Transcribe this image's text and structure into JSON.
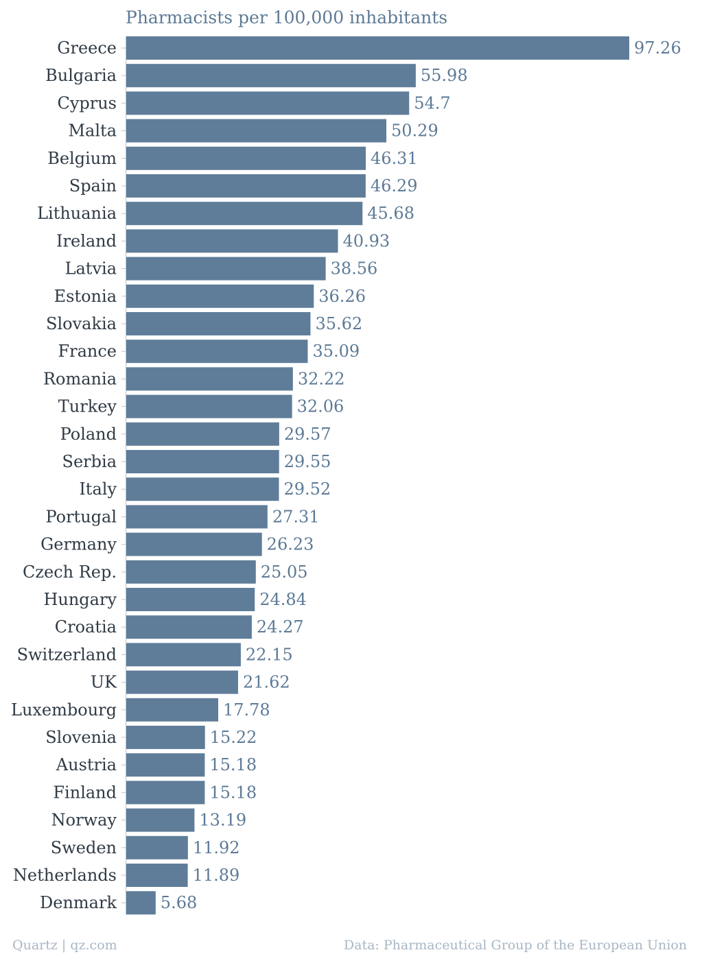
{
  "colors": {
    "bar": "#5f7d99",
    "text": "#5d7a96",
    "label": "#2f3a45",
    "tick": "#b9c5d0",
    "footer": "#a8b6c4"
  },
  "footer": {
    "source_left": "Quartz | qz.com",
    "source_right": "Data: Pharmaceutical Group of the European Union"
  },
  "chart_data": {
    "type": "bar",
    "orientation": "horizontal",
    "title": "Pharmacists per 100,000 inhabitants",
    "xlabel": "",
    "ylabel": "",
    "xlim": [
      0,
      97.26
    ],
    "grid": false,
    "legend": "none",
    "categories": [
      "Greece",
      "Bulgaria",
      "Cyprus",
      "Malta",
      "Belgium",
      "Spain",
      "Lithuania",
      "Ireland",
      "Latvia",
      "Estonia",
      "Slovakia",
      "France",
      "Romania",
      "Turkey",
      "Poland",
      "Serbia",
      "Italy",
      "Portugal",
      "Germany",
      "Czech Rep.",
      "Hungary",
      "Croatia",
      "Switzerland",
      "UK",
      "Luxembourg",
      "Slovenia",
      "Austria",
      "Finland",
      "Norway",
      "Sweden",
      "Netherlands",
      "Denmark"
    ],
    "values": [
      97.26,
      55.98,
      54.7,
      50.29,
      46.31,
      46.29,
      45.68,
      40.93,
      38.56,
      36.26,
      35.62,
      35.09,
      32.22,
      32.06,
      29.57,
      29.55,
      29.52,
      27.31,
      26.23,
      25.05,
      24.84,
      24.27,
      22.15,
      21.62,
      17.78,
      15.22,
      15.18,
      15.18,
      13.19,
      11.92,
      11.89,
      5.68
    ],
    "value_labels": [
      "97.26",
      "55.98",
      "54.7",
      "50.29",
      "46.31",
      "46.29",
      "45.68",
      "40.93",
      "38.56",
      "36.26",
      "35.62",
      "35.09",
      "32.22",
      "32.06",
      "29.57",
      "29.55",
      "29.52",
      "27.31",
      "26.23",
      "25.05",
      "24.84",
      "24.27",
      "22.15",
      "21.62",
      "17.78",
      "15.22",
      "15.18",
      "15.18",
      "13.19",
      "11.92",
      "11.89",
      "5.68"
    ]
  }
}
